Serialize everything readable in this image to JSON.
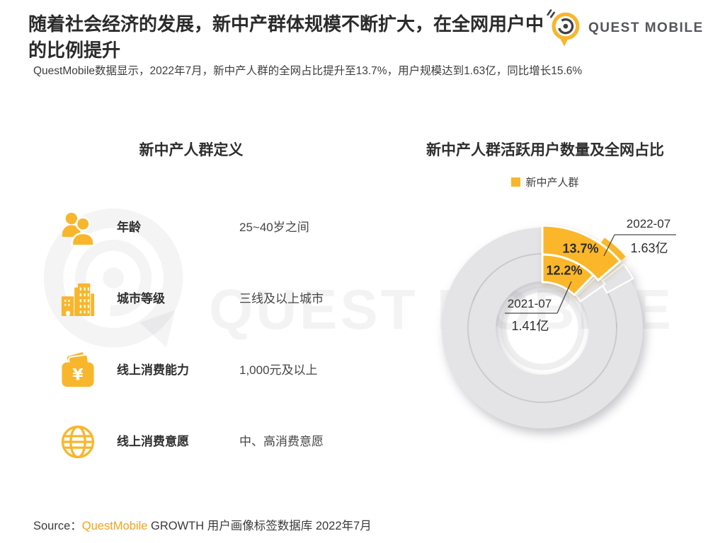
{
  "header": {
    "title_line1": "随着社会经济的发展，新中产群体规模不断扩大，在全网用户中",
    "title_line2": "的比例提升",
    "subtitle": "QuestMobile数据显示，2022年7月，新中产人群的全网占比提升至13.7%，用户规模达到1.63亿，同比增长15.6%",
    "logo_text": "QUEST MOBILE"
  },
  "brand": {
    "watermark_text": "QUEST MOBILE",
    "yellow": "#F8B62D",
    "dark": "#3F4043"
  },
  "definition": {
    "title": "新中产人群定义",
    "rows": [
      {
        "icon": "people-icon",
        "label": "年龄",
        "value": "25~40岁之间"
      },
      {
        "icon": "buildings-icon",
        "label": "城市等级",
        "value": "三线及以上城市"
      },
      {
        "icon": "wallet-icon",
        "label": "线上消费能力",
        "value": "1,000元及以上"
      },
      {
        "icon": "globe-icon",
        "label": "线上消费意愿",
        "value": "中、高消费意愿"
      }
    ]
  },
  "chart_data": {
    "type": "pie",
    "variant": "concentric-donut",
    "title": "新中产人群活跃用户数量及全网占比",
    "legend": [
      {
        "label": "新中产人群",
        "color": "#F8B62D"
      }
    ],
    "rings": [
      {
        "ring": "outer",
        "period": "2022-07",
        "share_pct": 13.7,
        "share_label": "13.7%",
        "users_label": "1.63亿"
      },
      {
        "ring": "inner",
        "period": "2021-07",
        "share_pct": 12.2,
        "share_label": "12.2%",
        "users_label": "1.41亿"
      }
    ],
    "start_angle_deg": 0,
    "direction": "clockwise",
    "highlight_color": "#FBB729",
    "remainder_color": "#E4E4E6"
  },
  "footer": {
    "source_prefix": "Source：",
    "source_brand": "QuestMobile",
    "source_suffix": " GROWTH 用户画像标签数据库 2022年7月"
  }
}
